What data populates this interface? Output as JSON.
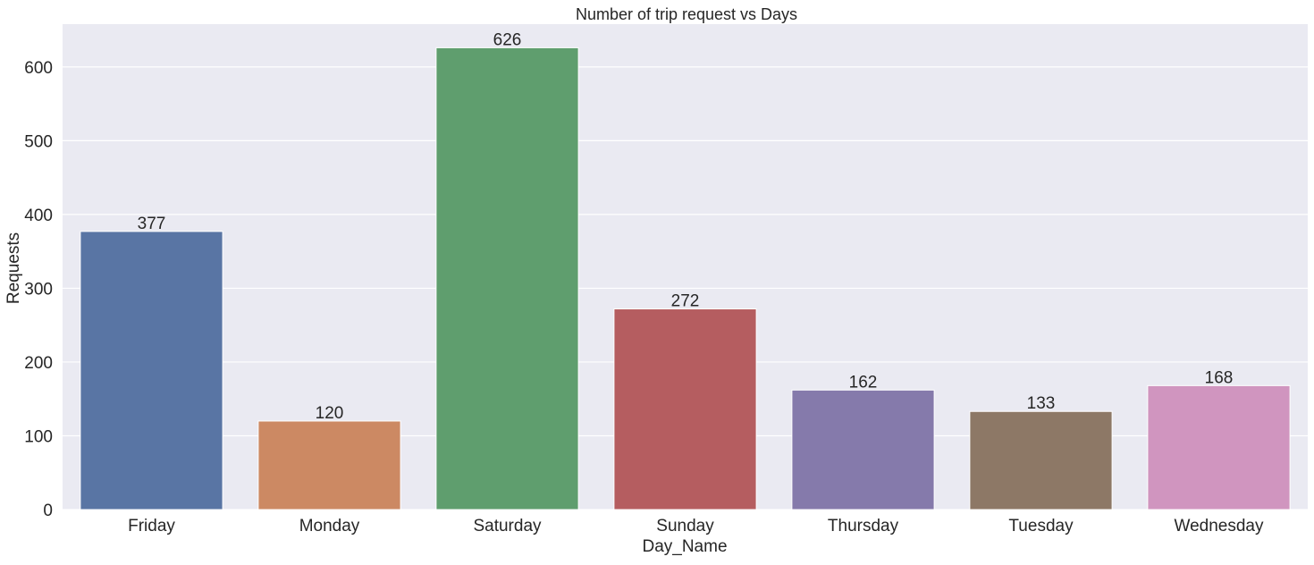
{
  "chart_data": {
    "type": "bar",
    "title": "Number of trip request vs Days",
    "xlabel": "Day_Name",
    "ylabel": "Requests",
    "categories": [
      "Friday",
      "Monday",
      "Saturday",
      "Sunday",
      "Thursday",
      "Tuesday",
      "Wednesday"
    ],
    "values": [
      377,
      120,
      626,
      272,
      162,
      133,
      168
    ],
    "data_labels": [
      "377",
      "120",
      "626",
      "272",
      "162",
      "133",
      "168"
    ],
    "ylim": [
      0,
      658
    ],
    "yticks": [
      0,
      100,
      200,
      300,
      400,
      500,
      600
    ],
    "ytick_labels": [
      "0",
      "100",
      "200",
      "300",
      "400",
      "500",
      "600"
    ],
    "grid": true,
    "legend": false,
    "colors": [
      "#5975a4",
      "#cc8963",
      "#5f9e6e",
      "#b55d60",
      "#857aab",
      "#8d7866",
      "#d095bf"
    ],
    "background_color": "#eaeaf2",
    "grid_color": "#ffffff"
  }
}
